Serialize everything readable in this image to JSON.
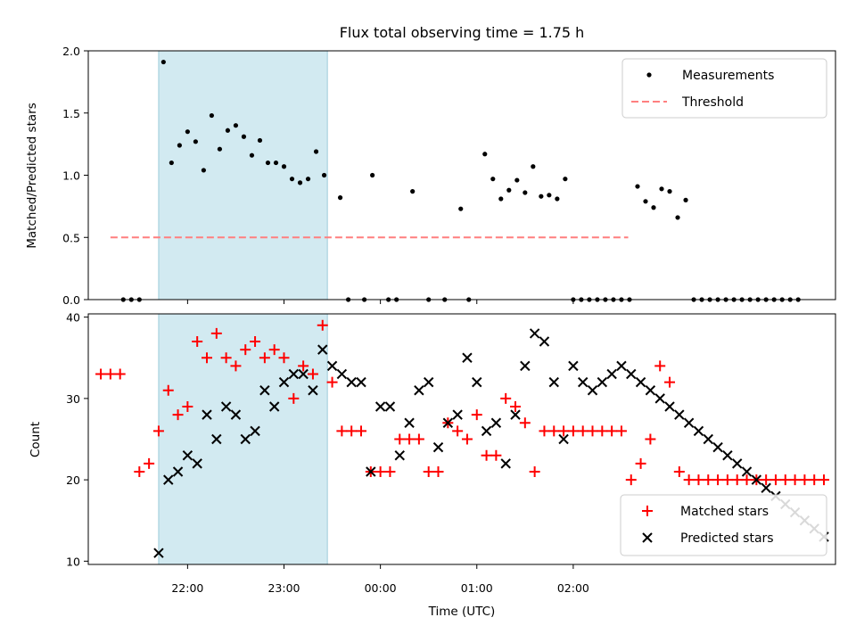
{
  "chart_data": [
    {
      "type": "scatter",
      "title": "Flux total observing time = 1.75 h",
      "ylabel": "Matched/Predicted stars",
      "ylim": [
        0,
        2.0
      ],
      "yticks": [
        "0.0",
        "0.5",
        "1.0",
        "1.5",
        "2.0"
      ],
      "shaded_interval": {
        "start": 21.7,
        "end": 23.45,
        "color": "#add8e6"
      },
      "legend": {
        "placement": "top-right",
        "entries": [
          "Measurements",
          "Threshold"
        ]
      },
      "series": [
        {
          "name": "Measurements",
          "marker": "dot",
          "color": "#000000",
          "x": [
            21.3333,
            21.4167,
            21.5,
            21.75,
            21.8333,
            21.9167,
            22.0,
            22.0833,
            22.1667,
            22.25,
            22.3333,
            22.4167,
            22.5,
            22.5833,
            22.6667,
            22.75,
            22.8333,
            22.9167,
            23.0,
            23.0833,
            23.1667,
            23.25,
            23.3333,
            23.4167,
            23.5833,
            23.6667,
            23.8333,
            23.9167,
            24.0833,
            24.1667,
            24.3333,
            24.5,
            24.6667,
            24.8333,
            24.9167,
            25.0833,
            25.1667,
            25.25,
            25.3333,
            25.4167,
            25.5,
            25.5833,
            25.6667,
            25.75,
            25.8333,
            25.9167,
            26.0,
            26.0833,
            26.1667,
            26.25,
            26.3333,
            26.4167,
            26.5,
            26.5833,
            26.6667,
            26.75,
            26.8333,
            26.9167,
            27.0,
            27.0833,
            27.1667,
            27.25,
            27.3333,
            27.4167,
            27.5,
            27.5833,
            27.6667,
            27.75,
            27.8333,
            27.9167,
            28.0,
            28.0833,
            28.1667,
            28.25,
            28.3333
          ],
          "y": [
            0,
            0,
            0,
            1.91,
            1.1,
            1.24,
            1.35,
            1.27,
            1.04,
            1.48,
            1.21,
            1.36,
            1.4,
            1.31,
            1.16,
            1.28,
            1.1,
            1.1,
            1.07,
            0.97,
            0.94,
            0.97,
            1.19,
            1.0,
            0.82,
            0,
            0,
            1.0,
            0,
            0,
            0.87,
            0,
            0,
            0.73,
            0,
            1.17,
            0.97,
            0.81,
            0.88,
            0.96,
            0.86,
            1.07,
            0.83,
            0.84,
            0.81,
            0.97,
            0,
            0,
            0,
            0,
            0,
            0,
            0,
            0,
            0.91,
            0.79,
            0.74,
            0.89,
            0.87,
            0.66,
            0.8,
            0,
            0,
            0,
            0,
            0,
            0,
            0,
            0,
            0,
            0,
            0,
            0,
            0,
            0
          ]
        },
        {
          "name": "Threshold",
          "style": "dashed",
          "color": "#ff7f7f",
          "x": [
            21.2,
            26.57
          ],
          "y": [
            0.5,
            0.5
          ]
        }
      ]
    },
    {
      "type": "scatter",
      "xlabel": "Time (UTC)",
      "ylabel": "Count",
      "ylim": [
        9.6,
        40.4
      ],
      "xlim": [
        20.97,
        28.72
      ],
      "xticks": [
        {
          "x": 22,
          "label": "22:00"
        },
        {
          "x": 23,
          "label": "23:00"
        },
        {
          "x": 24,
          "label": "00:00"
        },
        {
          "x": 25,
          "label": "01:00"
        },
        {
          "x": 26,
          "label": "02:00"
        }
      ],
      "yticks": [
        "10",
        "20",
        "30",
        "40"
      ],
      "shaded_interval": {
        "start": 21.7,
        "end": 23.45,
        "color": "#add8e6"
      },
      "legend": {
        "placement": "lower-right",
        "entries": [
          "Matched stars",
          "Predicted stars"
        ]
      },
      "series": [
        {
          "name": "Matched stars",
          "marker": "plus",
          "color": "#ff0000",
          "x": [
            21.1,
            21.2,
            21.3,
            21.5,
            21.6,
            21.7,
            21.8,
            21.9,
            22.0,
            22.1,
            22.2,
            22.3,
            22.4,
            22.5,
            22.6,
            22.7,
            22.8,
            22.9,
            23.0,
            23.1,
            23.2,
            23.3,
            23.4,
            23.5,
            23.6,
            23.7,
            23.8,
            23.9,
            24.0,
            24.1,
            24.2,
            24.3,
            24.4,
            24.5,
            24.6,
            24.7,
            24.8,
            24.9,
            25.0,
            25.1,
            25.2,
            25.3,
            25.4,
            25.5,
            25.6,
            25.7,
            25.8,
            25.9,
            26.0,
            26.1,
            26.2,
            26.3,
            26.4,
            26.5,
            26.6,
            26.7,
            26.8,
            26.9,
            27.0,
            27.1,
            27.2,
            27.3,
            27.4,
            27.5,
            27.6,
            27.7,
            27.8,
            27.9,
            28.0,
            28.1,
            28.2,
            28.3,
            28.4,
            28.5,
            28.6
          ],
          "y": [
            33,
            33,
            33,
            21,
            22,
            26,
            31,
            28,
            29,
            37,
            35,
            38,
            35,
            34,
            36,
            37,
            35,
            36,
            35,
            30,
            34,
            33,
            39,
            32,
            26,
            26,
            26,
            21,
            21,
            21,
            25,
            25,
            25,
            21,
            21,
            27,
            26,
            25,
            28,
            23,
            23,
            30,
            29,
            27,
            21,
            26,
            26,
            26,
            26,
            26,
            26,
            26,
            26,
            26,
            20,
            22,
            25,
            34,
            32,
            21,
            20,
            20,
            20,
            20,
            20,
            20,
            20,
            20,
            20,
            20,
            20,
            20,
            20,
            20,
            20
          ]
        },
        {
          "name": "Predicted stars",
          "marker": "x",
          "color": "#000000",
          "x": [
            21.7,
            21.8,
            21.9,
            22.0,
            22.1,
            22.2,
            22.3,
            22.4,
            22.5,
            22.6,
            22.7,
            22.8,
            22.9,
            23.0,
            23.1,
            23.2,
            23.3,
            23.4,
            23.5,
            23.6,
            23.7,
            23.8,
            23.9,
            24.0,
            24.1,
            24.2,
            24.3,
            24.4,
            24.5,
            24.6,
            24.7,
            24.8,
            24.9,
            25.0,
            25.1,
            25.2,
            25.3,
            25.4,
            25.5,
            25.6,
            25.7,
            25.8,
            25.9,
            26.0,
            26.1,
            26.2,
            26.3,
            26.4,
            26.5,
            26.6,
            26.7,
            26.8,
            26.9,
            27.0,
            27.1,
            27.2,
            27.3,
            27.4,
            27.5,
            27.6,
            27.7,
            27.8,
            27.9,
            28.0,
            28.1,
            28.2,
            28.3,
            28.4,
            28.5,
            28.6
          ],
          "y": [
            11,
            20,
            21,
            23,
            22,
            28,
            25,
            29,
            28,
            25,
            26,
            31,
            29,
            32,
            33,
            33,
            31,
            36,
            34,
            33,
            32,
            32,
            21,
            29,
            29,
            23,
            27,
            31,
            32,
            24,
            27,
            28,
            35,
            32,
            26,
            27,
            22,
            28,
            34,
            38,
            37,
            32,
            25,
            34,
            32,
            31,
            32,
            33,
            34,
            33,
            32,
            31,
            30,
            29,
            28,
            27,
            26,
            25,
            24,
            23,
            22,
            21,
            20,
            19,
            18,
            17,
            16,
            15,
            14,
            13
          ]
        }
      ]
    }
  ]
}
